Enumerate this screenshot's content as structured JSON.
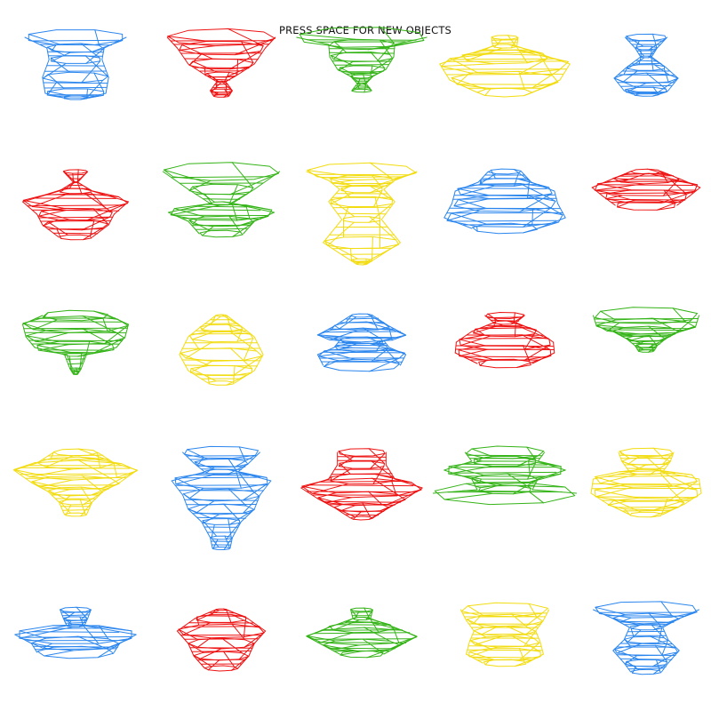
{
  "window": {
    "instruction_text": "PRESS SPACE FOR NEW OBJECTS"
  },
  "palette": {
    "blue": "#2b86ee",
    "red": "#ee1111",
    "green": "#33b316",
    "yellow": "#f2dc10"
  },
  "grid": {
    "columns": 5,
    "rows": 5
  },
  "objects": [
    {
      "color": "blue",
      "profile": [
        [
          92,
          0
        ],
        [
          52,
          12
        ],
        [
          48,
          25
        ],
        [
          60,
          45
        ],
        [
          55,
          63
        ],
        [
          22,
          68
        ]
      ]
    },
    {
      "color": "red",
      "profile": [
        [
          98,
          0
        ],
        [
          80,
          12
        ],
        [
          60,
          30
        ],
        [
          30,
          42
        ],
        [
          8,
          50
        ],
        [
          20,
          60
        ],
        [
          14,
          66
        ]
      ]
    },
    {
      "color": "green",
      "profile": [
        [
          118,
          0
        ],
        [
          60,
          8
        ],
        [
          58,
          22
        ],
        [
          44,
          36
        ],
        [
          20,
          44
        ],
        [
          8,
          52
        ],
        [
          18,
          60
        ]
      ]
    },
    {
      "color": "yellow",
      "profile": [
        [
          24,
          0
        ],
        [
          22,
          10
        ],
        [
          80,
          22
        ],
        [
          118,
          30
        ],
        [
          100,
          48
        ],
        [
          50,
          62
        ]
      ]
    },
    {
      "color": "blue",
      "profile": [
        [
          38,
          0
        ],
        [
          20,
          12
        ],
        [
          10,
          22
        ],
        [
          36,
          34
        ],
        [
          58,
          46
        ],
        [
          40,
          60
        ],
        [
          24,
          64
        ]
      ]
    },
    {
      "color": "red",
      "profile": [
        [
          22,
          0
        ],
        [
          4,
          12
        ],
        [
          30,
          22
        ],
        [
          96,
          34
        ],
        [
          70,
          48
        ],
        [
          60,
          60
        ],
        [
          30,
          74
        ]
      ]
    },
    {
      "color": "green",
      "profile": [
        [
          106,
          0
        ],
        [
          60,
          20
        ],
        [
          20,
          36
        ],
        [
          96,
          46
        ],
        [
          60,
          56
        ],
        [
          40,
          70
        ]
      ]
    },
    {
      "color": "yellow",
      "profile": [
        [
          100,
          0
        ],
        [
          60,
          10
        ],
        [
          40,
          20
        ],
        [
          60,
          34
        ],
        [
          36,
          54
        ],
        [
          70,
          80
        ],
        [
          20,
          100
        ],
        [
          10,
          104
        ]
      ]
    },
    {
      "color": "blue",
      "profile": [
        [
          30,
          0
        ],
        [
          48,
          12
        ],
        [
          90,
          22
        ],
        [
          96,
          36
        ],
        [
          110,
          52
        ],
        [
          60,
          64
        ]
      ]
    },
    {
      "color": "red",
      "profile": [
        [
          28,
          0
        ],
        [
          60,
          8
        ],
        [
          98,
          18
        ],
        [
          78,
          28
        ],
        [
          56,
          38
        ]
      ]
    },
    {
      "color": "green",
      "profile": [
        [
          60,
          0
        ],
        [
          96,
          10
        ],
        [
          90,
          24
        ],
        [
          74,
          36
        ],
        [
          20,
          44
        ],
        [
          10,
          60
        ],
        [
          4,
          66
        ]
      ]
    },
    {
      "color": "yellow",
      "profile": [
        [
          10,
          0
        ],
        [
          40,
          14
        ],
        [
          60,
          24
        ],
        [
          76,
          44
        ],
        [
          60,
          62
        ],
        [
          24,
          76
        ]
      ]
    },
    {
      "color": "blue",
      "profile": [
        [
          20,
          0
        ],
        [
          50,
          12
        ],
        [
          80,
          22
        ],
        [
          40,
          28
        ],
        [
          50,
          36
        ],
        [
          80,
          44
        ],
        [
          70,
          56
        ]
      ]
    },
    {
      "color": "red",
      "profile": [
        [
          36,
          0
        ],
        [
          20,
          8
        ],
        [
          60,
          18
        ],
        [
          88,
          30
        ],
        [
          90,
          42
        ],
        [
          50,
          54
        ]
      ]
    },
    {
      "color": "green",
      "profile": [
        [
          96,
          0
        ],
        [
          90,
          12
        ],
        [
          60,
          18
        ],
        [
          36,
          26
        ],
        [
          20,
          34
        ],
        [
          14,
          40
        ]
      ]
    },
    {
      "color": "yellow",
      "profile": [
        [
          40,
          0
        ],
        [
          70,
          12
        ],
        [
          112,
          20
        ],
        [
          80,
          34
        ],
        [
          50,
          44
        ],
        [
          30,
          56
        ],
        [
          20,
          70
        ]
      ]
    },
    {
      "color": "blue",
      "profile": [
        [
          70,
          0
        ],
        [
          50,
          12
        ],
        [
          30,
          22
        ],
        [
          90,
          32
        ],
        [
          70,
          48
        ],
        [
          60,
          64
        ],
        [
          36,
          78
        ],
        [
          20,
          96
        ],
        [
          16,
          108
        ]
      ]
    },
    {
      "color": "red",
      "profile": [
        [
          44,
          0
        ],
        [
          44,
          14
        ],
        [
          60,
          30
        ],
        [
          110,
          40
        ],
        [
          80,
          52
        ],
        [
          50,
          62
        ],
        [
          20,
          74
        ]
      ]
    },
    {
      "color": "green",
      "profile": [
        [
          72,
          0
        ],
        [
          60,
          10
        ],
        [
          110,
          20
        ],
        [
          60,
          30
        ],
        [
          50,
          42
        ],
        [
          130,
          46
        ]
      ]
    },
    {
      "color": "yellow",
      "profile": [
        [
          50,
          0
        ],
        [
          44,
          10
        ],
        [
          30,
          22
        ],
        [
          96,
          30
        ],
        [
          100,
          46
        ],
        [
          70,
          58
        ],
        [
          30,
          70
        ]
      ]
    },
    {
      "color": "blue",
      "profile": [
        [
          28,
          0
        ],
        [
          22,
          10
        ],
        [
          16,
          18
        ],
        [
          110,
          28
        ],
        [
          80,
          38
        ],
        [
          70,
          48
        ]
      ]
    },
    {
      "color": "red",
      "profile": [
        [
          10,
          0
        ],
        [
          48,
          10
        ],
        [
          80,
          24
        ],
        [
          60,
          38
        ],
        [
          50,
          52
        ],
        [
          30,
          66
        ]
      ]
    },
    {
      "color": "green",
      "profile": [
        [
          20,
          0
        ],
        [
          16,
          10
        ],
        [
          60,
          20
        ],
        [
          100,
          30
        ],
        [
          70,
          40
        ],
        [
          40,
          50
        ]
      ]
    },
    {
      "color": "yellow",
      "profile": [
        [
          80,
          0
        ],
        [
          70,
          12
        ],
        [
          56,
          24
        ],
        [
          64,
          36
        ],
        [
          70,
          50
        ],
        [
          40,
          60
        ]
      ]
    },
    {
      "color": "blue",
      "profile": [
        [
          96,
          0
        ],
        [
          60,
          10
        ],
        [
          30,
          20
        ],
        [
          40,
          34
        ],
        [
          60,
          46
        ],
        [
          40,
          60
        ],
        [
          28,
          70
        ]
      ]
    }
  ]
}
